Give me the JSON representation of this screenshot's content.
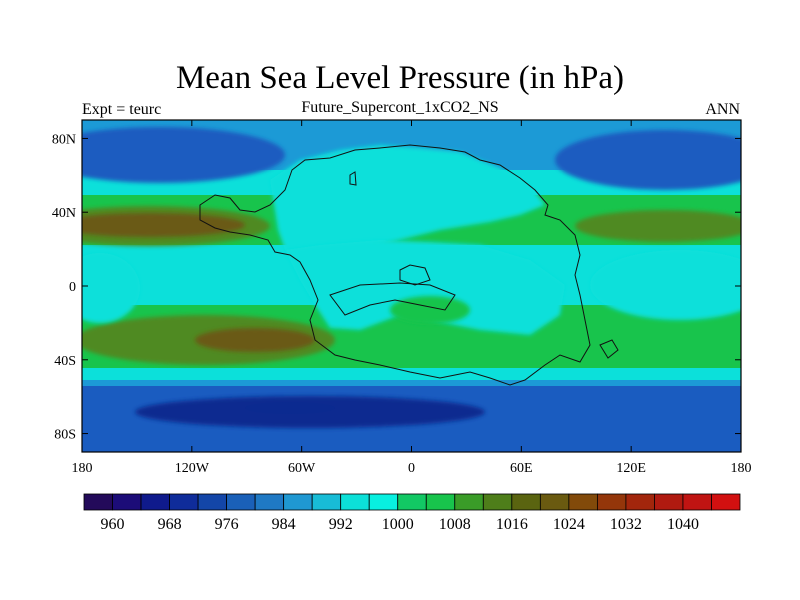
{
  "title": "Mean Sea Level Pressure (in hPa)",
  "subtitle": "Future_Supercont_1xCO2_NS",
  "left_label": "Expt = teurc",
  "right_label": "ANN",
  "lat_ticks": [
    "80N",
    "40N",
    "0",
    "40S",
    "80S"
  ],
  "lon_ticks": [
    "180",
    "120W",
    "60W",
    "0",
    "60E",
    "120E",
    "180"
  ],
  "colorbar": {
    "labels": [
      "960",
      "968",
      "976",
      "984",
      "992",
      "1000",
      "1008",
      "1016",
      "1024",
      "1032",
      "1040"
    ],
    "colors": [
      "#230a5a",
      "#1c0c78",
      "#0f1a8c",
      "#0f2c9a",
      "#1346a8",
      "#1a60b8",
      "#1f79c4",
      "#1f98d2",
      "#18bcd6",
      "#0ce0d8",
      "#08f0e0",
      "#12c864",
      "#18c44c",
      "#3a9c28",
      "#4e7e1a",
      "#5a6410",
      "#6a5a10",
      "#824a0a",
      "#94360a",
      "#a2260c",
      "#b01a10",
      "#c01412",
      "#d21010"
    ]
  },
  "fill_colors": {
    "deep_blue": "#0b2a90",
    "blue": "#1a5cc0",
    "light_blue": "#1c9ad6",
    "cyan": "#0ce0da",
    "green": "#18c44c",
    "olive": "#4f8a20",
    "brown": "#6a5a12"
  }
}
